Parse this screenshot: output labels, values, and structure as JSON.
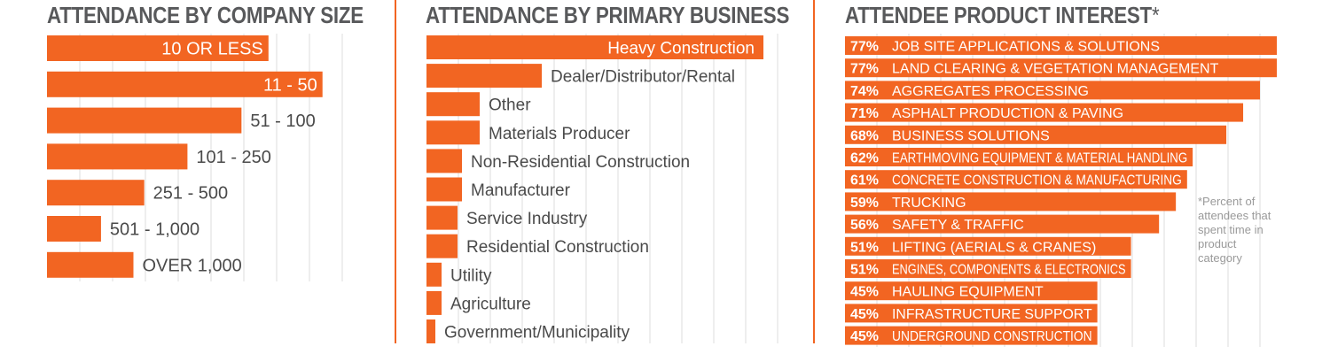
{
  "panels": {
    "size": {
      "title": "ATTENDANCE BY COMPANY SIZE"
    },
    "business": {
      "title": "ATTENDANCE BY PRIMARY BUSINESS"
    },
    "interest": {
      "title": "ATTENDEE PRODUCT INTEREST",
      "title_mark": "*",
      "footnote": "*Percent of attendees that spent time in product category"
    }
  },
  "colors": {
    "bar": "#f26522",
    "title": "#58595b",
    "label": "#4a4a4a",
    "grid": "#dcdcdc",
    "inside_label": "#ffffff",
    "footnote": "#9a9a9a"
  },
  "chart_data": [
    {
      "type": "bar",
      "orientation": "horizontal",
      "title": "ATTENDANCE BY COMPANY SIZE",
      "categories": [
        "10 OR LESS",
        "11 - 50",
        "51 - 100",
        "101 - 250",
        "251 - 500",
        "501 - 1,000",
        "OVER 1,000"
      ],
      "values": [
        20.5,
        25.5,
        18,
        13,
        9,
        5,
        8
      ],
      "xlim": [
        0,
        27
      ],
      "grid": true,
      "label_inside": [
        true,
        true,
        false,
        false,
        false,
        false,
        false
      ]
    },
    {
      "type": "bar",
      "orientation": "horizontal",
      "title": "ATTENDANCE BY PRIMARY BUSINESS",
      "categories": [
        "Heavy Construction",
        "Dealer/Distributor/Rental",
        "Other",
        "Materials Producer",
        "Non-Residential Construction",
        "Manufacturer",
        "Service Industry",
        "Residential Construction",
        "Utility",
        "Agriculture",
        "Government/Municipality"
      ],
      "values": [
        38,
        13,
        6,
        6,
        4,
        4,
        3.5,
        3.5,
        1.7,
        1.7,
        1
      ],
      "xlim": [
        0,
        40
      ],
      "grid": true,
      "label_inside": [
        true,
        false,
        false,
        false,
        false,
        false,
        false,
        false,
        false,
        false,
        false
      ]
    },
    {
      "type": "bar",
      "orientation": "horizontal",
      "title": "ATTENDEE PRODUCT INTEREST*",
      "categories": [
        "JOB SITE APPLICATIONS & SOLUTIONS",
        "LAND CLEARING & VEGETATION MANAGEMENT",
        "AGGREGATES PROCESSING",
        "ASPHALT PRODUCTION & PAVING",
        "BUSINESS SOLUTIONS",
        "EARTHMOVING EQUIPMENT & MATERIAL HANDLING",
        "CONCRETE CONSTRUCTION & MANUFACTURING",
        "TRUCKING",
        "SAFETY & TRAFFIC",
        "LIFTING (AERIALS & CRANES)",
        "ENGINES, COMPONENTS & ELECTRONICS",
        "HAULING EQUIPMENT",
        "INFRASTRUCTURE SUPPORT",
        "UNDERGROUND CONSTRUCTION"
      ],
      "values": [
        77,
        77,
        74,
        71,
        68,
        62,
        61,
        59,
        56,
        51,
        51,
        45,
        45,
        45
      ],
      "value_labels": [
        "77%",
        "77%",
        "74%",
        "71%",
        "68%",
        "62%",
        "61%",
        "59%",
        "56%",
        "51%",
        "51%",
        "45%",
        "45%",
        "45%"
      ],
      "xlim": [
        0,
        85
      ],
      "grid": true
    }
  ]
}
